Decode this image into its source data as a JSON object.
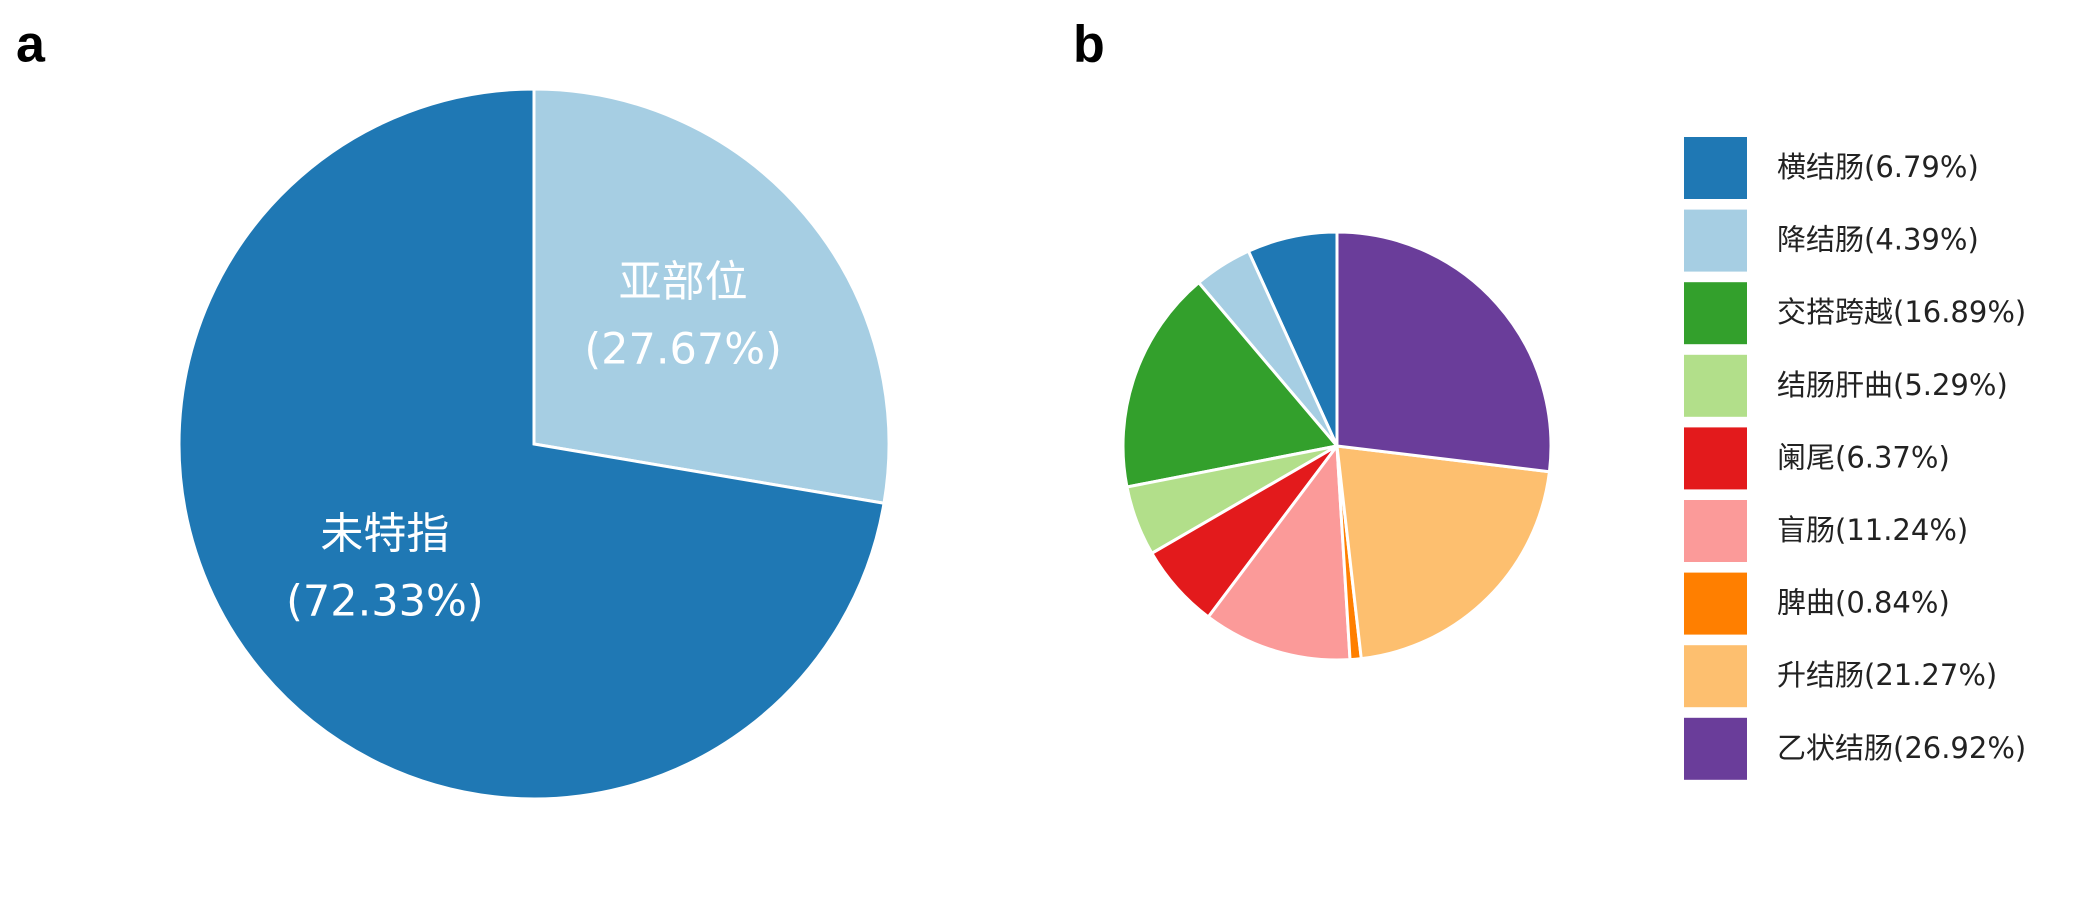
{
  "chart_data": [
    {
      "type": "pie",
      "label": "a",
      "categories": [
        "亚部位",
        "未特指"
      ],
      "values": [
        27.67,
        72.33
      ],
      "value_labels": [
        "(27.67%)",
        "(72.33%)"
      ],
      "colors": [
        "#a6cee3",
        "#1f78b4"
      ]
    },
    {
      "type": "pie",
      "label": "b",
      "categories": [
        "横结肠(6.79%)",
        "降结肠(4.39%)",
        "交搭跨越(16.89%)",
        "结肠肝曲(5.29%)",
        "阑尾(6.37%)",
        "盲肠(11.24%)",
        "脾曲(0.84%)",
        "升结肠(21.27%)",
        "乙状结肠(26.92%)"
      ],
      "values": [
        6.79,
        4.39,
        16.89,
        5.29,
        6.37,
        11.24,
        0.84,
        21.27,
        26.92
      ],
      "colors": [
        "#1f78b4",
        "#a6cee3",
        "#33a02c",
        "#b2df8a",
        "#e31a1c",
        "#fb9a99",
        "#ff7f00",
        "#fdbf6f",
        "#6a3d9a"
      ],
      "legend": "right"
    }
  ]
}
